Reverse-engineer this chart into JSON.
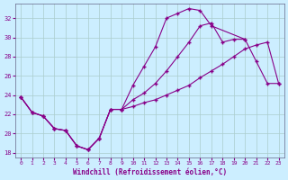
{
  "xlabel": "Windchill (Refroidissement éolien,°C)",
  "bg_color": "#cceeff",
  "line_color": "#880088",
  "grid_color": "#aacccc",
  "xlim": [
    -0.5,
    23.5
  ],
  "ylim": [
    17.5,
    33.5
  ],
  "yticks": [
    18,
    20,
    22,
    24,
    26,
    28,
    30,
    32
  ],
  "xticks": [
    0,
    1,
    2,
    3,
    4,
    5,
    6,
    7,
    8,
    9,
    10,
    11,
    12,
    13,
    14,
    15,
    16,
    17,
    18,
    19,
    20,
    21,
    22,
    23
  ],
  "series": [
    [
      23.8,
      22.2,
      21.8,
      20.5,
      20.3,
      18.7,
      18.3,
      19.5,
      22.5,
      22.5,
      25.0,
      27.0,
      29.0,
      32.0,
      32.5,
      33.0,
      32.8,
      31.2,
      null,
      null,
      29.8,
      null,
      null,
      null
    ],
    [
      23.8,
      22.2,
      21.8,
      20.5,
      20.3,
      18.7,
      18.3,
      19.5,
      22.5,
      22.5,
      23.5,
      24.2,
      25.2,
      26.5,
      28.0,
      29.5,
      31.2,
      31.5,
      29.5,
      29.8,
      29.8,
      27.5,
      25.2,
      25.2
    ],
    [
      23.8,
      22.2,
      21.8,
      20.5,
      20.3,
      18.7,
      18.3,
      19.5,
      22.5,
      22.5,
      22.8,
      23.2,
      23.5,
      24.0,
      24.5,
      25.0,
      25.8,
      26.5,
      27.2,
      28.0,
      28.8,
      29.2,
      29.5,
      25.2
    ]
  ]
}
